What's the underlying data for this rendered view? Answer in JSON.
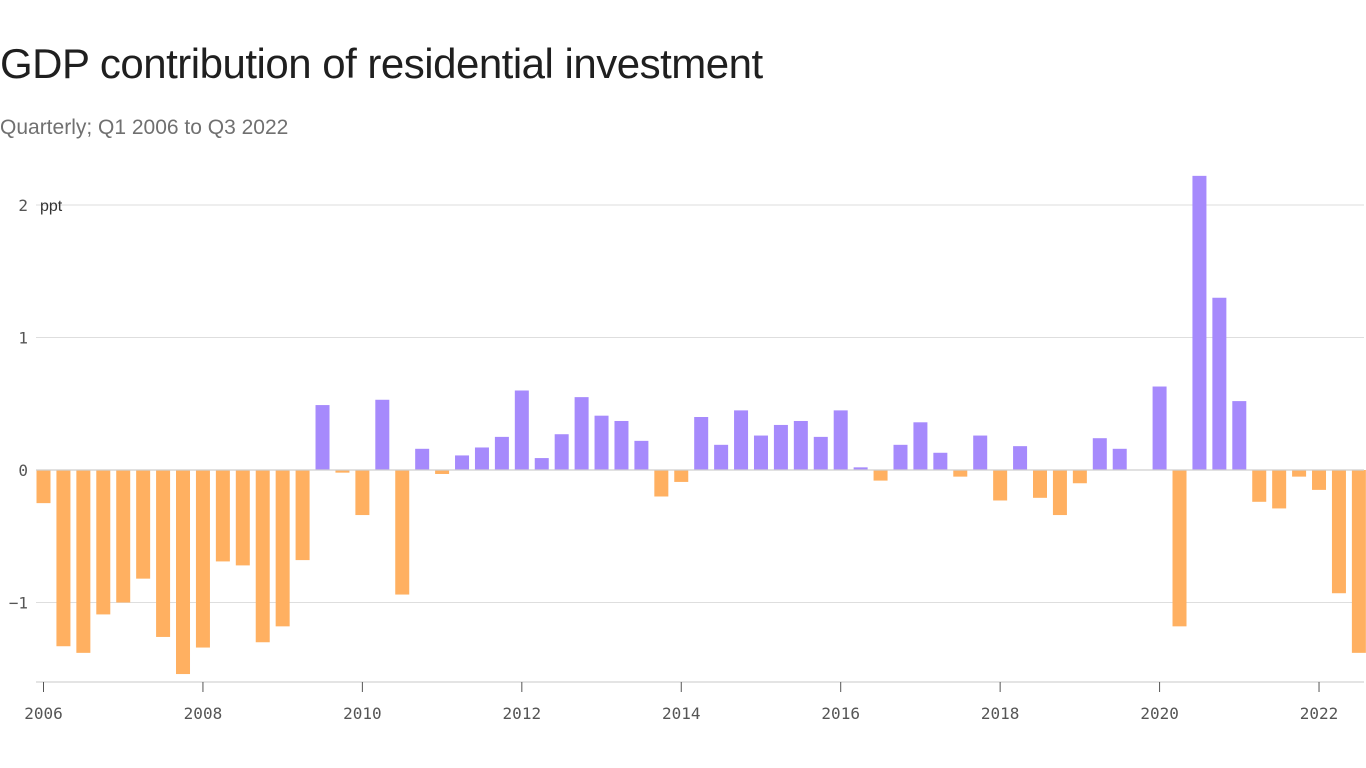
{
  "chart_data": {
    "type": "bar",
    "title": "GDP contribution of residential investment",
    "subtitle": "Quarterly; Q1 2006 to Q3 2022",
    "ylabel": "ppt",
    "ylim": [
      -1.55,
      2.25
    ],
    "yticks": [
      2,
      1,
      0,
      -1
    ],
    "yticks_labels": [
      "2",
      "1",
      "0",
      "−1"
    ],
    "xticks_labels": [
      "2006",
      "2008",
      "2010",
      "2012",
      "2014",
      "2016",
      "2018",
      "2020",
      "2022"
    ],
    "x_start_year": 2006,
    "positive_color": "#a68afc",
    "negative_color": "#ffb061",
    "categories": [
      "2006 Q1",
      "2006 Q2",
      "2006 Q3",
      "2006 Q4",
      "2007 Q1",
      "2007 Q2",
      "2007 Q3",
      "2007 Q4",
      "2008 Q1",
      "2008 Q2",
      "2008 Q3",
      "2008 Q4",
      "2009 Q1",
      "2009 Q2",
      "2009 Q3",
      "2009 Q4",
      "2010 Q1",
      "2010 Q2",
      "2010 Q3",
      "2010 Q4",
      "2011 Q1",
      "2011 Q2",
      "2011 Q3",
      "2011 Q4",
      "2012 Q1",
      "2012 Q2",
      "2012 Q3",
      "2012 Q4",
      "2013 Q1",
      "2013 Q2",
      "2013 Q3",
      "2013 Q4",
      "2014 Q1",
      "2014 Q2",
      "2014 Q3",
      "2014 Q4",
      "2015 Q1",
      "2015 Q2",
      "2015 Q3",
      "2015 Q4",
      "2016 Q1",
      "2016 Q2",
      "2016 Q3",
      "2016 Q4",
      "2017 Q1",
      "2017 Q2",
      "2017 Q3",
      "2017 Q4",
      "2018 Q1",
      "2018 Q2",
      "2018 Q3",
      "2018 Q4",
      "2019 Q1",
      "2019 Q2",
      "2019 Q3",
      "2019 Q4",
      "2020 Q1",
      "2020 Q2",
      "2020 Q3",
      "2020 Q4",
      "2021 Q1",
      "2021 Q2",
      "2021 Q3",
      "2021 Q4",
      "2022 Q1",
      "2022 Q2",
      "2022 Q3"
    ],
    "values": [
      -0.25,
      -1.33,
      -1.38,
      -1.09,
      -1.0,
      -0.82,
      -1.26,
      -1.54,
      -1.34,
      -0.69,
      -0.72,
      -1.3,
      -1.18,
      -0.68,
      0.49,
      -0.02,
      -0.34,
      0.53,
      -0.94,
      0.16,
      -0.03,
      0.11,
      0.17,
      0.25,
      0.6,
      0.09,
      0.27,
      0.55,
      0.41,
      0.37,
      0.22,
      -0.2,
      -0.09,
      0.4,
      0.19,
      0.45,
      0.26,
      0.34,
      0.37,
      0.25,
      0.45,
      0.02,
      -0.08,
      0.19,
      0.36,
      0.13,
      -0.05,
      0.26,
      -0.23,
      0.18,
      -0.21,
      -0.34,
      -0.1,
      0.24,
      0.16,
      0.0,
      0.63,
      -1.18,
      2.22,
      1.3,
      0.52,
      -0.24,
      -0.29,
      -0.05,
      -0.15,
      -0.93,
      -1.38
    ]
  }
}
